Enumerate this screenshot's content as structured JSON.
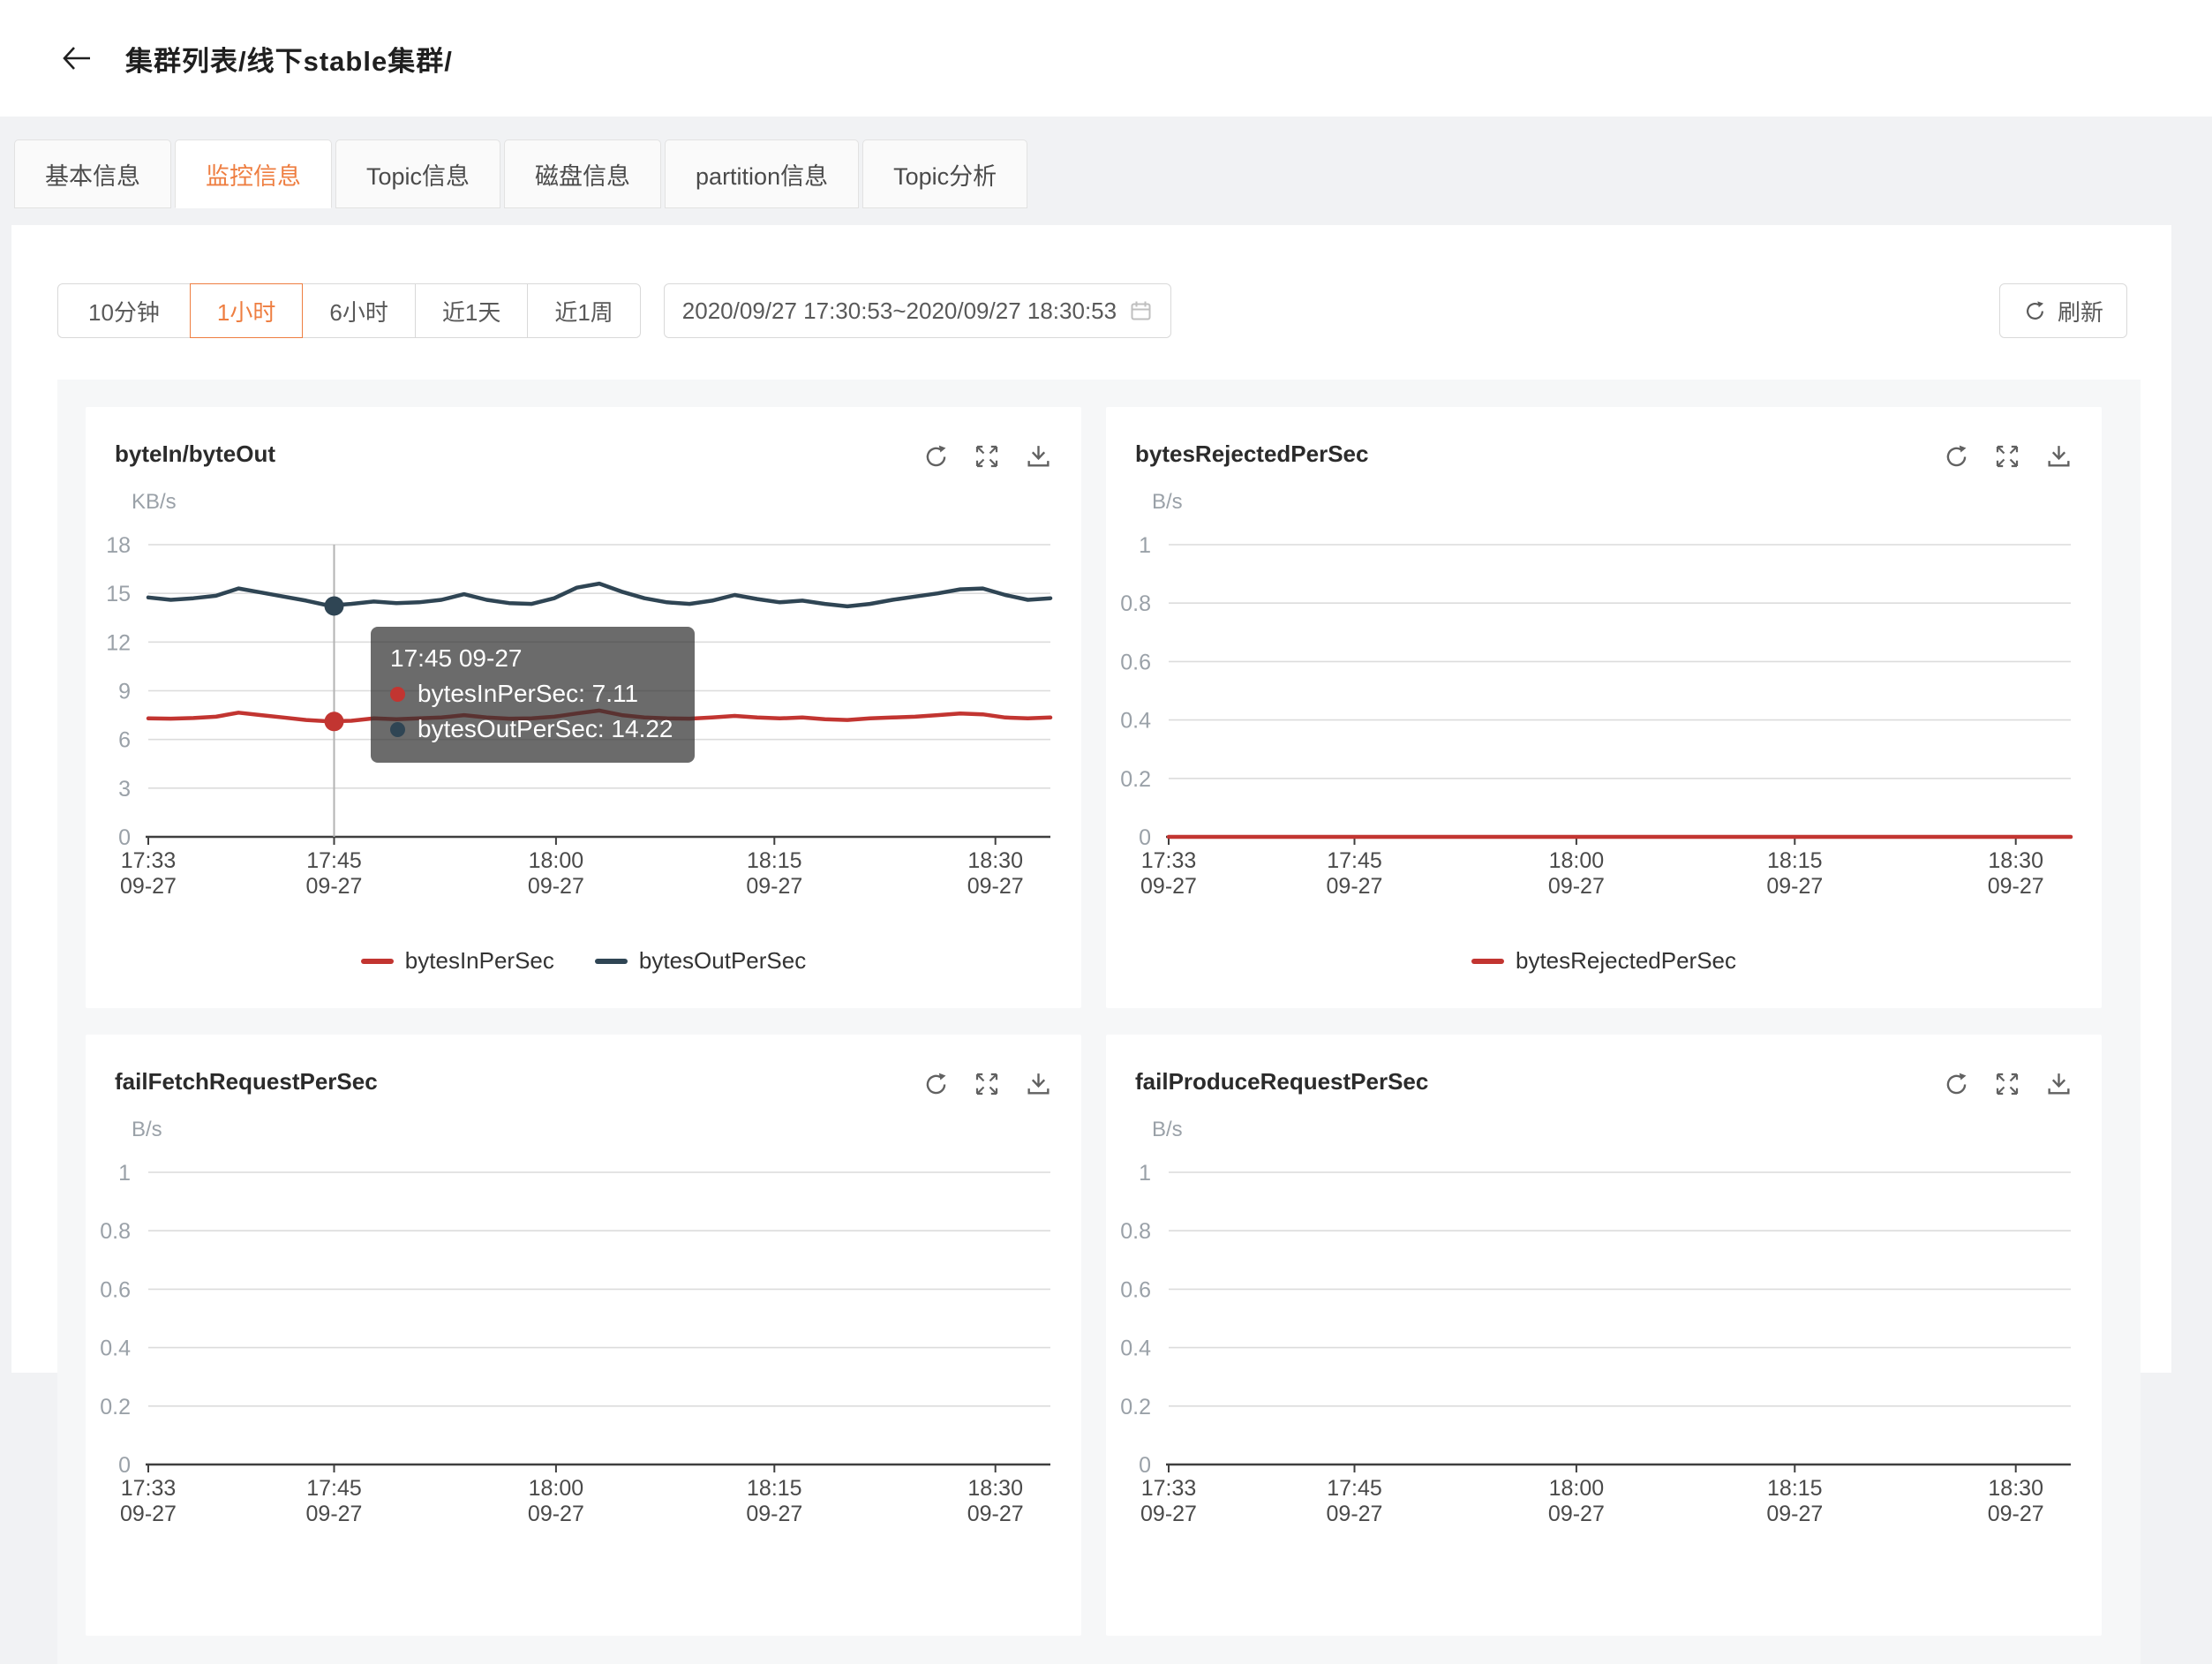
{
  "colors": {
    "accent": "#ee7e41",
    "series_red": "#c23531",
    "series_navy": "#2f4554",
    "page_bg": "#f1f2f4",
    "charts_bg": "#f6f7f8"
  },
  "header": {
    "breadcrumb": "集群列表/线下stable集群/"
  },
  "tabs": [
    {
      "id": "basic-info",
      "label": "基本信息",
      "active": false
    },
    {
      "id": "monitor-info",
      "label": "监控信息",
      "active": true
    },
    {
      "id": "topic-info",
      "label": "Topic信息",
      "active": false
    },
    {
      "id": "disk-info",
      "label": "磁盘信息",
      "active": false
    },
    {
      "id": "partition-info",
      "label": "partition信息",
      "active": false
    },
    {
      "id": "topic-analysis",
      "label": "Topic分析",
      "active": false
    }
  ],
  "toolbar": {
    "ranges": [
      {
        "id": "10min",
        "label": "10分钟",
        "active": false
      },
      {
        "id": "1hour",
        "label": "1小时",
        "active": true
      },
      {
        "id": "6hour",
        "label": "6小时",
        "active": false
      },
      {
        "id": "1day",
        "label": "近1天",
        "active": false
      },
      {
        "id": "1week",
        "label": "近1周",
        "active": false
      }
    ],
    "date_range": "2020/09/27 17:30:53~2020/09/27 18:30:53",
    "refresh_label": "刷新"
  },
  "chart_data": [
    {
      "type": "line",
      "title": "byteIn/byteOut",
      "unit": "KB/s",
      "ylim": [
        0,
        18
      ],
      "yticks": [
        0,
        3,
        6,
        9,
        12,
        15,
        18
      ],
      "grid": true,
      "legend_position": "bottom",
      "xticks": [
        {
          "time": "17:33",
          "date": "09-27",
          "f": 0.0
        },
        {
          "time": "17:45",
          "date": "09-27",
          "f": 0.206
        },
        {
          "time": "18:00",
          "date": "09-27",
          "f": 0.452
        },
        {
          "time": "18:15",
          "date": "09-27",
          "f": 0.694
        },
        {
          "time": "18:30",
          "date": "09-27",
          "f": 0.939
        }
      ],
      "series": [
        {
          "name": "bytesInPerSec",
          "color": "#c23531",
          "values": [
            7.3,
            7.28,
            7.32,
            7.4,
            7.65,
            7.5,
            7.35,
            7.2,
            7.12,
            7.15,
            7.3,
            7.25,
            7.3,
            7.35,
            7.5,
            7.35,
            7.28,
            7.3,
            7.4,
            7.6,
            7.78,
            7.5,
            7.35,
            7.3,
            7.28,
            7.35,
            7.45,
            7.35,
            7.3,
            7.35,
            7.25,
            7.2,
            7.3,
            7.35,
            7.4,
            7.5,
            7.6,
            7.55,
            7.35,
            7.3,
            7.35
          ]
        },
        {
          "name": "bytesOutPerSec",
          "color": "#2f4554",
          "values": [
            14.75,
            14.6,
            14.7,
            14.85,
            15.3,
            15.05,
            14.8,
            14.55,
            14.25,
            14.35,
            14.5,
            14.4,
            14.45,
            14.6,
            14.95,
            14.6,
            14.4,
            14.35,
            14.7,
            15.35,
            15.6,
            15.1,
            14.7,
            14.45,
            14.35,
            14.55,
            14.9,
            14.65,
            14.45,
            14.55,
            14.35,
            14.2,
            14.35,
            14.6,
            14.8,
            15.0,
            15.25,
            15.3,
            14.9,
            14.6,
            14.7
          ]
        }
      ],
      "legend": [
        {
          "name": "bytesInPerSec",
          "color": "#c23531"
        },
        {
          "name": "bytesOutPerSec",
          "color": "#2f4554"
        }
      ],
      "hover": {
        "f": 0.206,
        "points": [
          {
            "color": "#c23531",
            "value": 7.11
          },
          {
            "color": "#2f4554",
            "value": 14.22
          }
        ]
      },
      "tooltip": {
        "title": "17:45 09-27",
        "items": [
          {
            "name": "bytesInPerSec",
            "value": "7.11",
            "color": "#c23531"
          },
          {
            "name": "bytesOutPerSec",
            "value": "14.22",
            "color": "#2f4554"
          }
        ]
      }
    },
    {
      "type": "line",
      "title": "bytesRejectedPerSec",
      "unit": "B/s",
      "ylim": [
        0,
        1
      ],
      "yticks": [
        0,
        0.2,
        0.4,
        0.6,
        0.8,
        1
      ],
      "grid": true,
      "legend_position": "bottom",
      "xticks": [
        {
          "time": "17:33",
          "date": "09-27",
          "f": 0.0
        },
        {
          "time": "17:45",
          "date": "09-27",
          "f": 0.206
        },
        {
          "time": "18:00",
          "date": "09-27",
          "f": 0.452
        },
        {
          "time": "18:15",
          "date": "09-27",
          "f": 0.694
        },
        {
          "time": "18:30",
          "date": "09-27",
          "f": 0.939
        }
      ],
      "series": [
        {
          "name": "bytesRejectedPerSec",
          "color": "#c23531",
          "values": [
            0,
            0,
            0,
            0,
            0,
            0,
            0,
            0,
            0,
            0,
            0,
            0,
            0,
            0,
            0,
            0,
            0,
            0,
            0,
            0,
            0,
            0,
            0,
            0,
            0,
            0,
            0,
            0,
            0,
            0,
            0,
            0,
            0,
            0,
            0,
            0,
            0,
            0,
            0,
            0,
            0
          ]
        }
      ],
      "legend": [
        {
          "name": "bytesRejectedPerSec",
          "color": "#c23531"
        }
      ]
    },
    {
      "type": "line",
      "title": "failFetchRequestPerSec",
      "unit": "B/s",
      "ylim": [
        0,
        1
      ],
      "yticks": [
        0,
        0.2,
        0.4,
        0.6,
        0.8,
        1
      ],
      "grid": true,
      "xticks": [
        {
          "time": "17:33",
          "date": "09-27",
          "f": 0.0
        },
        {
          "time": "17:45",
          "date": "09-27",
          "f": 0.206
        },
        {
          "time": "18:00",
          "date": "09-27",
          "f": 0.452
        },
        {
          "time": "18:15",
          "date": "09-27",
          "f": 0.694
        },
        {
          "time": "18:30",
          "date": "09-27",
          "f": 0.939
        }
      ],
      "series": [],
      "legend": []
    },
    {
      "type": "line",
      "title": "failProduceRequestPerSec",
      "unit": "B/s",
      "ylim": [
        0,
        1
      ],
      "yticks": [
        0,
        0.2,
        0.4,
        0.6,
        0.8,
        1
      ],
      "grid": true,
      "xticks": [
        {
          "time": "17:33",
          "date": "09-27",
          "f": 0.0
        },
        {
          "time": "17:45",
          "date": "09-27",
          "f": 0.206
        },
        {
          "time": "18:00",
          "date": "09-27",
          "f": 0.452
        },
        {
          "time": "18:15",
          "date": "09-27",
          "f": 0.694
        },
        {
          "time": "18:30",
          "date": "09-27",
          "f": 0.939
        }
      ],
      "series": [],
      "legend": []
    }
  ]
}
